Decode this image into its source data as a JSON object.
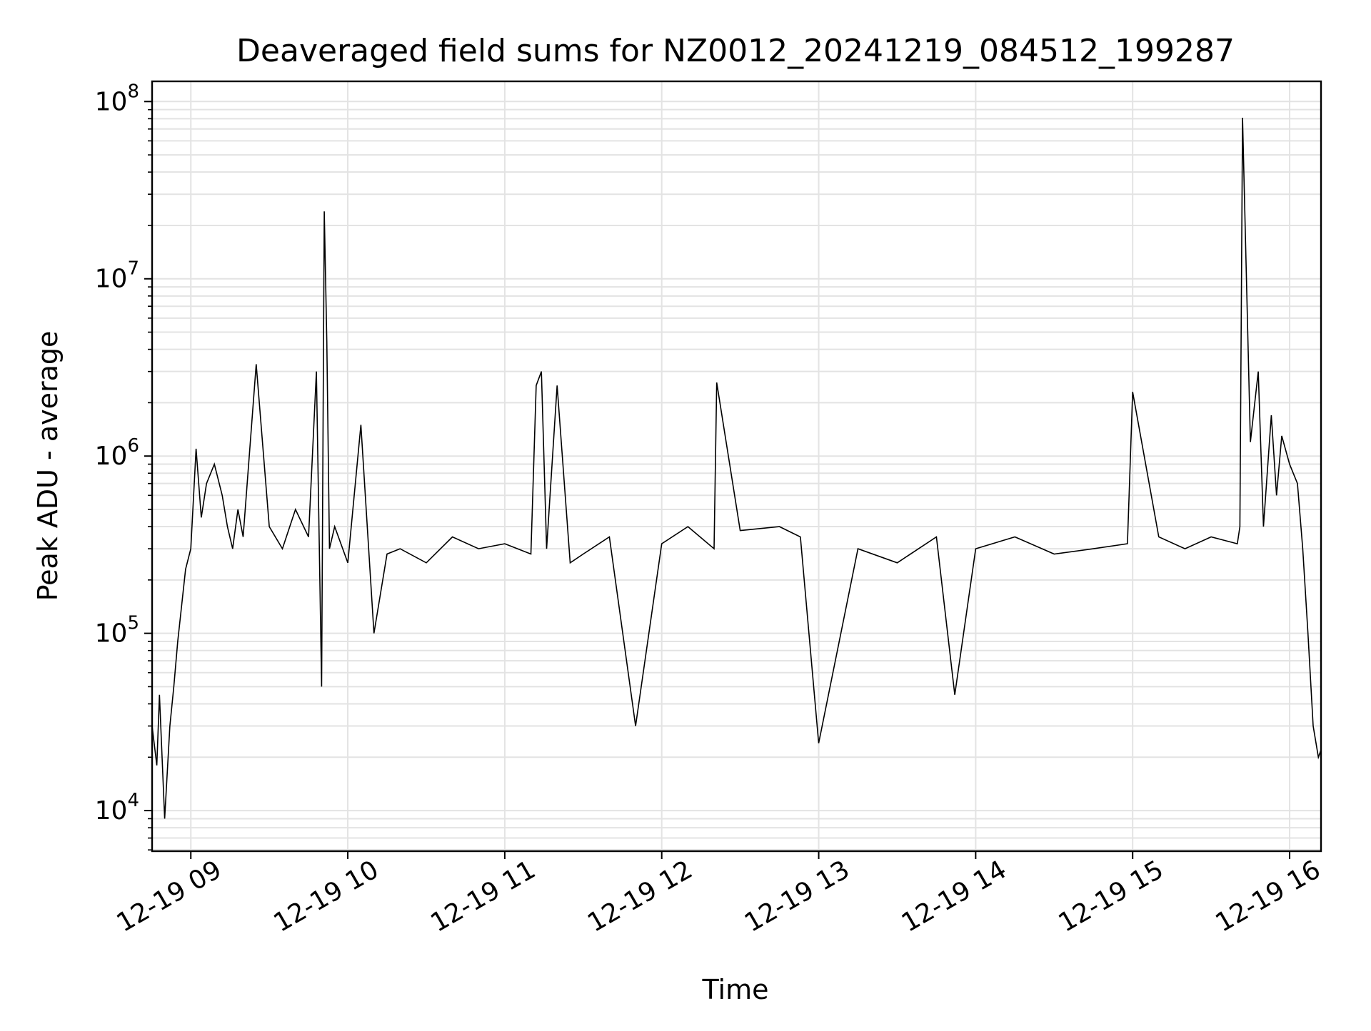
{
  "chart_data": {
    "type": "line",
    "title": "Deaveraged field sums for NZ0012_20241219_084512_199287",
    "xlabel": "Time",
    "ylabel": "Peak ADU - average",
    "xlim": [
      "2024-12-19T08:45:12",
      "2024-12-19T16:12:00"
    ],
    "ylim": [
      5900,
      130000000
    ],
    "yscale": "log",
    "grid": true,
    "legend": "none",
    "colors": {
      "line": "#000000",
      "grid": "#e3e3e3",
      "axes": "#000000"
    },
    "x_tick_labels": [
      "12-19 09",
      "12-19 10",
      "12-19 11",
      "12-19 12",
      "12-19 13",
      "12-19 14",
      "12-19 15",
      "12-19 16"
    ],
    "x_tick_times": [
      "2024-12-19T09:00",
      "2024-12-19T10:00",
      "2024-12-19T11:00",
      "2024-12-19T12:00",
      "2024-12-19T13:00",
      "2024-12-19T14:00",
      "2024-12-19T15:00",
      "2024-12-19T16:00"
    ],
    "y_ticks": [
      {
        "base": "10",
        "exp": "4",
        "value": 10000
      },
      {
        "base": "10",
        "exp": "5",
        "value": 100000
      },
      {
        "base": "10",
        "exp": "6",
        "value": 1000000
      },
      {
        "base": "10",
        "exp": "7",
        "value": 10000000
      },
      {
        "base": "10",
        "exp": "8",
        "value": 100000000
      }
    ],
    "series": [
      {
        "x": [
          "2024-12-19T08:45:12",
          "2024-12-19T08:47:00",
          "2024-12-19T08:48:00",
          "2024-12-19T08:50:00",
          "2024-12-19T08:52:00",
          "2024-12-19T08:53:30",
          "2024-12-19T08:55:00",
          "2024-12-19T08:58:00",
          "2024-12-19T09:00:00",
          "2024-12-19T09:02:00",
          "2024-12-19T09:04:00",
          "2024-12-19T09:06:00",
          "2024-12-19T09:09:00",
          "2024-12-19T09:12:00",
          "2024-12-19T09:14:00",
          "2024-12-19T09:16:00",
          "2024-12-19T09:18:00",
          "2024-12-19T09:20:00",
          "2024-12-19T09:25:00",
          "2024-12-19T09:30:00",
          "2024-12-19T09:35:00",
          "2024-12-19T09:40:00",
          "2024-12-19T09:45:00",
          "2024-12-19T09:48:00",
          "2024-12-19T09:50:00",
          "2024-12-19T09:51:00",
          "2024-12-19T09:52:00",
          "2024-12-19T09:53:00",
          "2024-12-19T09:55:00",
          "2024-12-19T10:00:00",
          "2024-12-19T10:05:00",
          "2024-12-19T10:10:00",
          "2024-12-19T10:15:00",
          "2024-12-19T10:20:00",
          "2024-12-19T10:30:00",
          "2024-12-19T10:40:00",
          "2024-12-19T10:50:00",
          "2024-12-19T11:00:00",
          "2024-12-19T11:10:00",
          "2024-12-19T11:12:00",
          "2024-12-19T11:14:00",
          "2024-12-19T11:16:00",
          "2024-12-19T11:20:00",
          "2024-12-19T11:25:00",
          "2024-12-19T11:30:00",
          "2024-12-19T11:40:00",
          "2024-12-19T11:50:00",
          "2024-12-19T12:00:00",
          "2024-12-19T12:10:00",
          "2024-12-19T12:20:00",
          "2024-12-19T12:21:00",
          "2024-12-19T12:30:00",
          "2024-12-19T12:45:00",
          "2024-12-19T12:53:00",
          "2024-12-19T13:00:00",
          "2024-12-19T13:15:00",
          "2024-12-19T13:30:00",
          "2024-12-19T13:45:00",
          "2024-12-19T13:52:00",
          "2024-12-19T14:00:00",
          "2024-12-19T14:15:00",
          "2024-12-19T14:30:00",
          "2024-12-19T14:45:00",
          "2024-12-19T14:58:00",
          "2024-12-19T15:00:00",
          "2024-12-19T15:10:00",
          "2024-12-19T15:20:00",
          "2024-12-19T15:30:00",
          "2024-12-19T15:40:00",
          "2024-12-19T15:41:00",
          "2024-12-19T15:42:00",
          "2024-12-19T15:45:00",
          "2024-12-19T15:48:00",
          "2024-12-19T15:50:00",
          "2024-12-19T15:53:00",
          "2024-12-19T15:55:00",
          "2024-12-19T15:57:00",
          "2024-12-19T16:00:00",
          "2024-12-19T16:03:00",
          "2024-12-19T16:05:00",
          "2024-12-19T16:07:00",
          "2024-12-19T16:09:00",
          "2024-12-19T16:11:00",
          "2024-12-19T16:12:00"
        ],
        "y": [
          30000,
          18000,
          45000,
          9000,
          30000,
          50000,
          90000,
          230000,
          300000,
          1100000,
          450000,
          700000,
          900000,
          600000,
          400000,
          300000,
          500000,
          350000,
          3300000,
          400000,
          300000,
          500000,
          350000,
          3000000,
          50000,
          24000000,
          4400000,
          300000,
          400000,
          250000,
          1500000,
          100000,
          280000,
          300000,
          250000,
          350000,
          300000,
          320000,
          280000,
          2500000,
          3000000,
          300000,
          2500000,
          250000,
          280000,
          350000,
          30000,
          320000,
          400000,
          300000,
          2600000,
          380000,
          400000,
          350000,
          24000,
          300000,
          250000,
          350000,
          45000,
          300000,
          350000,
          280000,
          300000,
          320000,
          2300000,
          350000,
          300000,
          350000,
          320000,
          400000,
          81000000,
          1200000,
          3000000,
          400000,
          1700000,
          600000,
          1300000,
          900000,
          700000,
          300000,
          100000,
          30000,
          20000,
          22000
        ]
      }
    ]
  }
}
